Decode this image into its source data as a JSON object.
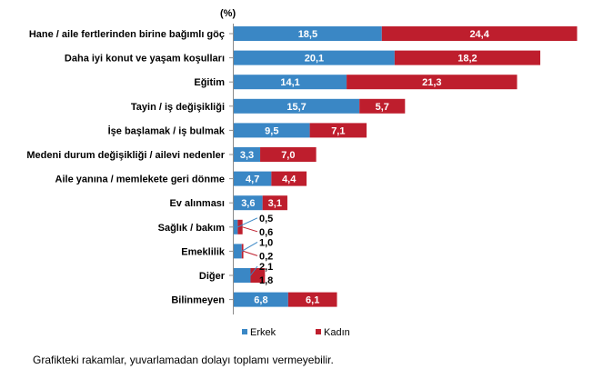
{
  "chart_data": {
    "type": "bar",
    "orientation": "horizontal",
    "stacked": true,
    "unit_label": "(%)",
    "categories": [
      "Hane / aile fertlerinden birine bağımlı göç",
      "Daha iyi konut ve yaşam koşulları",
      "Eğitim",
      "Tayin / iş değişikliği",
      "İşe başlamak / iş bulmak",
      "Medeni durum değişikliği / ailevi nedenler",
      "Aile yanına / memlekete geri dönme",
      "Ev alınması",
      "Sağlık / bakım",
      "Emeklilik",
      "Diğer",
      "Bilinmeyen"
    ],
    "series": [
      {
        "name": "Erkek",
        "color": "#3a87c5",
        "values": [
          18.5,
          20.1,
          14.1,
          15.7,
          9.5,
          3.3,
          4.7,
          3.6,
          0.5,
          1.0,
          2.1,
          6.8
        ],
        "labels": [
          "18,5",
          "20,1",
          "14,1",
          "15,7",
          "9,5",
          "3,3",
          "4,7",
          "3,6",
          "0,5",
          "1,0",
          "2,1",
          "6,8"
        ]
      },
      {
        "name": "Kadın",
        "color": "#be1e2d",
        "values": [
          24.4,
          18.2,
          21.3,
          5.7,
          7.1,
          7.0,
          4.4,
          3.1,
          0.6,
          0.2,
          1.8,
          6.1
        ],
        "labels": [
          "24,4",
          "18,2",
          "21,3",
          "5,7",
          "7,1",
          "7,0",
          "4,4",
          "3,1",
          "0,6",
          "0,2",
          "1,8",
          "6,1"
        ]
      }
    ],
    "legend_position": "bottom",
    "grid": false
  },
  "footnote": "Grafikteki rakamlar, yuvarlamadan dolayı toplamı vermeyebilir."
}
